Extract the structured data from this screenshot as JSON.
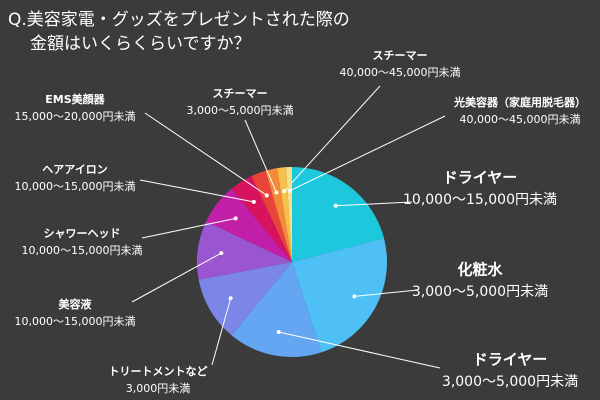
{
  "chart_data": {
    "type": "pie",
    "title_lines": [
      "Q.美容家電・グッズをプレゼントされた際の",
      "金額はいくらくらいですか？"
    ],
    "categories": [
      "ドライヤー",
      "化粧水",
      "ドライヤー",
      "トリートメントなど",
      "美容液",
      "シャワーヘッド",
      "ヘアアイロン",
      "EMS美顔器",
      "スチーマー",
      "スチーマー",
      "光美容器（家庭用脱毛器）"
    ],
    "price_ranges": [
      "10,000〜15,000円未満",
      "3,000〜5,000円未満",
      "3,000〜5,000円未満",
      "3,000円未満",
      "10,000〜15,000円未満",
      "10,000〜15,000円未満",
      "10,000〜15,000円未満",
      "15,000〜20,000円未満",
      "3,000〜5,000円未満",
      "40,000〜45,000円未満",
      "40,000〜45,000円未満"
    ],
    "values": [
      21,
      24,
      16,
      11,
      10,
      7,
      4,
      2.5,
      2,
      1.5,
      1
    ],
    "colors": [
      "#1ec8dc",
      "#4ec0f5",
      "#64a6f2",
      "#7c86e6",
      "#9a56d0",
      "#c21fa8",
      "#d8135e",
      "#e8443a",
      "#f58a3a",
      "#f6c04a",
      "#f7e08a"
    ]
  }
}
